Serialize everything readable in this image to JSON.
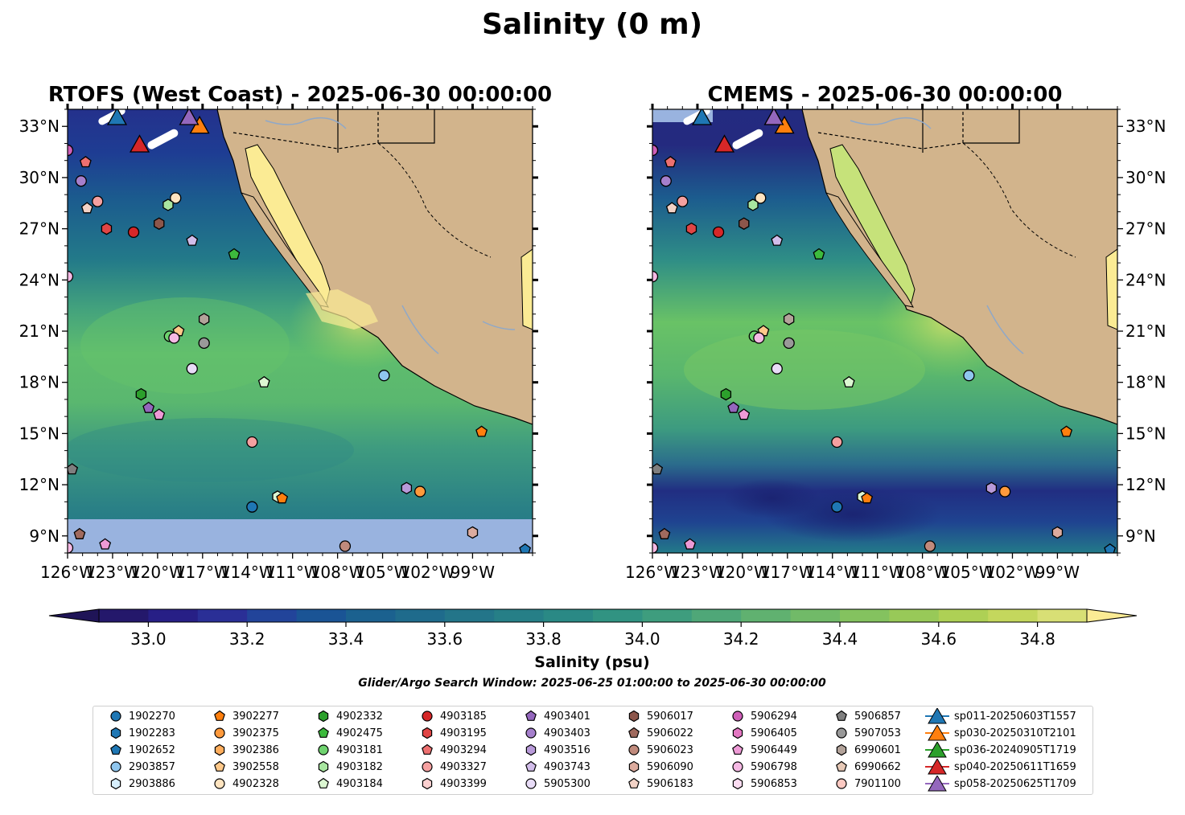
{
  "figure": {
    "suptitle": "Salinity (0 m)",
    "search_window": "Glider/Argo Search Window: 2025-06-25 01:00:00 to 2025-06-30 00:00:00"
  },
  "chart_data": [
    {
      "type": "heatmap",
      "title": "RTOFS (West Coast) - 2025-06-30 00:00:00",
      "variable": "Salinity (0 m)",
      "units": "psu",
      "xlim": [
        -126,
        -95
      ],
      "ylim": [
        8,
        34
      ],
      "x_ticks": [
        "126°W",
        "123°W",
        "120°W",
        "117°W",
        "114°W",
        "111°W",
        "108°W",
        "105°W",
        "102°W",
        "99°W"
      ],
      "y_ticks": [
        "9°N",
        "12°N",
        "15°N",
        "18°N",
        "21°N",
        "24°N",
        "27°N",
        "30°N",
        "33°N"
      ],
      "no_data_region": "south of ~10°N"
    },
    {
      "type": "heatmap",
      "title": "CMEMS - 2025-06-30 00:00:00",
      "variable": "Salinity (0 m)",
      "units": "psu",
      "xlim": [
        -126,
        -95
      ],
      "ylim": [
        8,
        34
      ],
      "x_ticks": [
        "126°W",
        "123°W",
        "120°W",
        "117°W",
        "114°W",
        "111°W",
        "108°W",
        "105°W",
        "102°W",
        "99°W"
      ],
      "y_ticks": [
        "9°N",
        "12°N",
        "15°N",
        "18°N",
        "21°N",
        "24°N",
        "27°N",
        "30°N",
        "33°N"
      ]
    }
  ],
  "colorbar": {
    "label": "Salinity (psu)",
    "min": 32.9,
    "max": 34.9,
    "step": 0.1,
    "ticks": [
      "33.0",
      "33.2",
      "33.4",
      "33.6",
      "33.8",
      "34.0",
      "34.2",
      "34.4",
      "34.6",
      "34.8"
    ],
    "extend": "both"
  },
  "legend": {
    "columns": [
      [
        {
          "label": "1902270",
          "marker": "circle",
          "color": "#1f77b4"
        },
        {
          "label": "1902283",
          "marker": "hexagon",
          "color": "#1f77b4"
        },
        {
          "label": "1902652",
          "marker": "pentagon",
          "color": "#1f77b4"
        },
        {
          "label": "2903857",
          "marker": "circle",
          "color": "#8fc6ee"
        },
        {
          "label": "2903886",
          "marker": "hexagon",
          "color": "#d6eefc"
        }
      ],
      [
        {
          "label": "3902277",
          "marker": "pentagon",
          "color": "#ff7f0e"
        },
        {
          "label": "3902375",
          "marker": "circle",
          "color": "#ff9a3c"
        },
        {
          "label": "3902386",
          "marker": "hexagon",
          "color": "#ffad5c"
        },
        {
          "label": "3902558",
          "marker": "pentagon",
          "color": "#ffc98a"
        },
        {
          "label": "4902328",
          "marker": "circle",
          "color": "#ffe4c0"
        }
      ],
      [
        {
          "label": "4902332",
          "marker": "hexagon",
          "color": "#2ca02c"
        },
        {
          "label": "4902475",
          "marker": "pentagon",
          "color": "#3dba3d"
        },
        {
          "label": "4903181",
          "marker": "circle",
          "color": "#6fd36f"
        },
        {
          "label": "4903182",
          "marker": "hexagon",
          "color": "#a8e6a0"
        },
        {
          "label": "4903184",
          "marker": "pentagon",
          "color": "#dcf7d2"
        }
      ],
      [
        {
          "label": "4903185",
          "marker": "circle",
          "color": "#d62728"
        },
        {
          "label": "4903195",
          "marker": "hexagon",
          "color": "#e04545"
        },
        {
          "label": "4903294",
          "marker": "pentagon",
          "color": "#ee7070"
        },
        {
          "label": "4903327",
          "marker": "circle",
          "color": "#f5a0a0"
        },
        {
          "label": "4903399",
          "marker": "hexagon",
          "color": "#fcd0d0"
        }
      ],
      [
        {
          "label": "4903401",
          "marker": "pentagon",
          "color": "#9467bd"
        },
        {
          "label": "4903403",
          "marker": "circle",
          "color": "#a57fcc"
        },
        {
          "label": "4903516",
          "marker": "hexagon",
          "color": "#b89ad9"
        },
        {
          "label": "4903743",
          "marker": "pentagon",
          "color": "#d2bdea"
        },
        {
          "label": "5905300",
          "marker": "circle",
          "color": "#e8dcf7"
        }
      ],
      [
        {
          "label": "5906017",
          "marker": "hexagon",
          "color": "#8c564b"
        },
        {
          "label": "5906022",
          "marker": "pentagon",
          "color": "#a06a5e"
        },
        {
          "label": "5906023",
          "marker": "circle",
          "color": "#c08a7c"
        },
        {
          "label": "5906090",
          "marker": "hexagon",
          "color": "#dcab9e"
        },
        {
          "label": "5906183",
          "marker": "pentagon",
          "color": "#f2d2c6"
        }
      ],
      [
        {
          "label": "5906294",
          "marker": "circle",
          "color": "#cf5fb8"
        },
        {
          "label": "5906405",
          "marker": "hexagon",
          "color": "#e377c2"
        },
        {
          "label": "5906449",
          "marker": "pentagon",
          "color": "#ee9ad6"
        },
        {
          "label": "5906798",
          "marker": "circle",
          "color": "#f5b9e4"
        },
        {
          "label": "5906853",
          "marker": "hexagon",
          "color": "#fbdcf1"
        }
      ],
      [
        {
          "label": "5906857",
          "marker": "pentagon",
          "color": "#7f7f7f"
        },
        {
          "label": "5907053",
          "marker": "circle",
          "color": "#999999"
        },
        {
          "label": "6990601",
          "marker": "hexagon",
          "color": "#b3a39a"
        },
        {
          "label": "6990662",
          "marker": "pentagon",
          "color": "#e7c9b7"
        },
        {
          "label": "7901100",
          "marker": "circle",
          "color": "#fcc9c2"
        }
      ],
      [
        {
          "label": "sp011-20250603T1557",
          "marker": "triangle",
          "color": "#1f77b4"
        },
        {
          "label": "sp030-20250310T2101",
          "marker": "triangle",
          "color": "#ff7f0e"
        },
        {
          "label": "sp036-20240905T1719",
          "marker": "triangle",
          "color": "#2ca02c"
        },
        {
          "label": "sp040-20250611T1659",
          "marker": "triangle",
          "color": "#d62728"
        },
        {
          "label": "sp058-20250625T1709",
          "marker": "triangle",
          "color": "#9467bd"
        }
      ]
    ]
  },
  "floats": [
    {
      "lon": -126.0,
      "lat": 31.6,
      "marker": "circle",
      "color": "#cf5fb8"
    },
    {
      "lon": -124.8,
      "lat": 30.9,
      "marker": "pentagon",
      "color": "#ee7070"
    },
    {
      "lon": -125.1,
      "lat": 29.8,
      "marker": "circle",
      "color": "#a57fcc"
    },
    {
      "lon": -124.0,
      "lat": 28.6,
      "marker": "circle",
      "color": "#f5a0a0"
    },
    {
      "lon": -124.7,
      "lat": 28.2,
      "marker": "pentagon",
      "color": "#f2d2c6"
    },
    {
      "lon": -118.8,
      "lat": 28.8,
      "marker": "circle",
      "color": "#ffe4c0"
    },
    {
      "lon": -119.3,
      "lat": 28.4,
      "marker": "hexagon",
      "color": "#a8e6a0"
    },
    {
      "lon": -123.4,
      "lat": 27.0,
      "marker": "hexagon",
      "color": "#e04545"
    },
    {
      "lon": -121.6,
      "lat": 26.8,
      "marker": "circle",
      "color": "#d62728"
    },
    {
      "lon": -119.9,
      "lat": 27.3,
      "marker": "hexagon",
      "color": "#8c564b"
    },
    {
      "lon": -117.7,
      "lat": 26.3,
      "marker": "pentagon",
      "color": "#d2bdea"
    },
    {
      "lon": -114.9,
      "lat": 25.5,
      "marker": "pentagon",
      "color": "#3dba3d"
    },
    {
      "lon": -126.0,
      "lat": 24.2,
      "marker": "circle",
      "color": "#f5b9e4"
    },
    {
      "lon": -116.9,
      "lat": 21.7,
      "marker": "hexagon",
      "color": "#b3a39a"
    },
    {
      "lon": -119.2,
      "lat": 20.7,
      "marker": "circle",
      "color": "#6fd36f"
    },
    {
      "lon": -118.6,
      "lat": 21.0,
      "marker": "pentagon",
      "color": "#ffc98a"
    },
    {
      "lon": -118.9,
      "lat": 20.6,
      "marker": "circle",
      "color": "#f5b9e4"
    },
    {
      "lon": -116.9,
      "lat": 20.3,
      "marker": "circle",
      "color": "#999999"
    },
    {
      "lon": -117.7,
      "lat": 18.8,
      "marker": "circle",
      "color": "#e8dcf7"
    },
    {
      "lon": -112.9,
      "lat": 18.0,
      "marker": "pentagon",
      "color": "#dcf7d2"
    },
    {
      "lon": -121.1,
      "lat": 17.3,
      "marker": "hexagon",
      "color": "#2ca02c"
    },
    {
      "lon": -120.6,
      "lat": 16.5,
      "marker": "pentagon",
      "color": "#9467bd"
    },
    {
      "lon": -119.9,
      "lat": 16.1,
      "marker": "pentagon",
      "color": "#ee9ad6"
    },
    {
      "lon": -104.9,
      "lat": 18.4,
      "marker": "circle",
      "color": "#8fc6ee"
    },
    {
      "lon": -98.4,
      "lat": 15.1,
      "marker": "pentagon",
      "color": "#ff7f0e"
    },
    {
      "lon": -113.7,
      "lat": 14.5,
      "marker": "circle",
      "color": "#f5a0a0"
    },
    {
      "lon": -125.7,
      "lat": 12.9,
      "marker": "pentagon",
      "color": "#7f7f7f"
    },
    {
      "lon": -103.4,
      "lat": 11.8,
      "marker": "hexagon",
      "color": "#b89ad9"
    },
    {
      "lon": -102.5,
      "lat": 11.6,
      "marker": "circle",
      "color": "#ff9a3c"
    },
    {
      "lon": -112.0,
      "lat": 11.3,
      "marker": "hexagon",
      "color": "#dcf7d2"
    },
    {
      "lon": -111.7,
      "lat": 11.2,
      "marker": "pentagon",
      "color": "#ff7f0e"
    },
    {
      "lon": -113.7,
      "lat": 10.7,
      "marker": "circle",
      "color": "#1f77b4"
    },
    {
      "lon": -125.2,
      "lat": 9.1,
      "marker": "pentagon",
      "color": "#a06a5e"
    },
    {
      "lon": -123.5,
      "lat": 8.5,
      "marker": "pentagon",
      "color": "#ee9ad6"
    },
    {
      "lon": -99.0,
      "lat": 9.2,
      "marker": "hexagon",
      "color": "#dcab9e"
    },
    {
      "lon": -107.5,
      "lat": 8.4,
      "marker": "circle",
      "color": "#c08a7c"
    },
    {
      "lon": -126.0,
      "lat": 8.3,
      "marker": "circle",
      "color": "#f5b9e4"
    },
    {
      "lon": -95.5,
      "lat": 8.2,
      "marker": "pentagon",
      "color": "#1f77b4"
    }
  ],
  "gliders": [
    {
      "lon": -122.7,
      "lat": 33.5,
      "color": "#1f77b4"
    },
    {
      "lon": -117.2,
      "lat": 33.0,
      "color": "#ff7f0e"
    },
    {
      "lon": -117.9,
      "lat": 33.5,
      "color": "#9467bd"
    },
    {
      "lon": -121.2,
      "lat": 31.9,
      "color": "#d62728"
    }
  ]
}
